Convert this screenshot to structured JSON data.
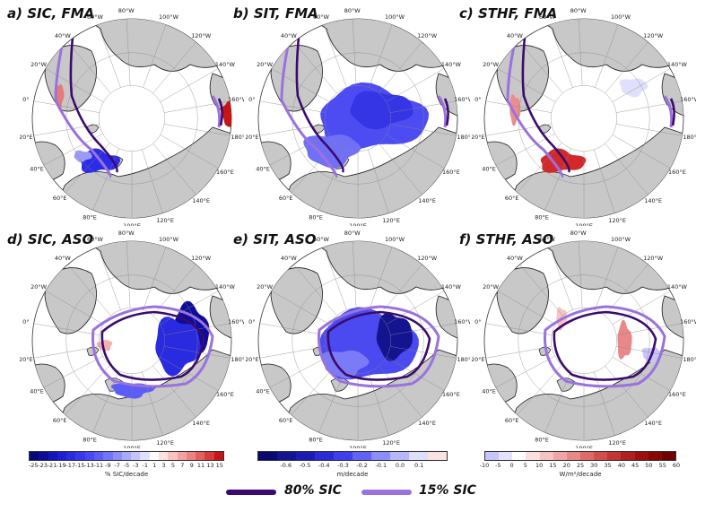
{
  "panels": [
    {
      "id": "a",
      "title": "a) SIC, FMA"
    },
    {
      "id": "b",
      "title": "b) SIT, FMA"
    },
    {
      "id": "c",
      "title": "c) STHF, FMA"
    },
    {
      "id": "d",
      "title": "d) SIC, ASO"
    },
    {
      "id": "e",
      "title": "e) SIT, ASO"
    },
    {
      "id": "f",
      "title": "f) STHF, ASO"
    }
  ],
  "longitude_labels": [
    "80°W",
    "100°W",
    "120°W",
    "140°W",
    "160°W",
    "180°",
    "160°E",
    "140°E",
    "120°E",
    "100°E",
    "80°E",
    "60°E",
    "40°E",
    "20°E",
    "0°",
    "20°W",
    "40°W",
    "60°W"
  ],
  "colorbars": [
    {
      "id": "sic",
      "unit": "% SIC/decade",
      "ticks": [
        "-25",
        "-23",
        "-21",
        "-19",
        "-17",
        "-15",
        "-13",
        "-11",
        "-9",
        "-7",
        "-5",
        "-3",
        "-1",
        "1",
        "3",
        "5",
        "7",
        "9",
        "11",
        "13",
        "15"
      ],
      "colors": [
        "#08087a",
        "#0d0d9a",
        "#1515b8",
        "#1f1fd0",
        "#2a2ae0",
        "#3737ee",
        "#4848f5",
        "#5c5cf8",
        "#7474fa",
        "#8e8efb",
        "#a9a9fc",
        "#c4c4fd",
        "#e0e0fe",
        "#ffffff",
        "#fde0e0",
        "#f9c2c2",
        "#f3a2a2",
        "#ec8282",
        "#e26060",
        "#d63c3c",
        "#c81414"
      ]
    },
    {
      "id": "sit",
      "unit": "m/decade",
      "ticks": [
        "-0.6",
        "-0.5",
        "-0.4",
        "-0.3",
        "-0.2",
        "-0.1",
        "0.0",
        "0.1"
      ],
      "colors": [
        "#0a0a6e",
        "#141490",
        "#1c1cb4",
        "#2a2ad6",
        "#3f3fee",
        "#6262f6",
        "#8c8cfa",
        "#b6b6fc",
        "#dedefe",
        "#fbe2e2"
      ]
    },
    {
      "id": "sthf",
      "unit": "W/m²/decade",
      "ticks": [
        "-10",
        "-5",
        "0",
        "5",
        "10",
        "15",
        "20",
        "25",
        "30",
        "35",
        "40",
        "45",
        "50",
        "55",
        "60"
      ],
      "colors": [
        "#c6c6f8",
        "#e2e2fc",
        "#ffffff",
        "#fbdede",
        "#f6c3c3",
        "#f0a6a6",
        "#e88888",
        "#de6a6a",
        "#d24e4e",
        "#c43434",
        "#b21f1f",
        "#9e1010",
        "#870707",
        "#6e0202"
      ]
    }
  ],
  "legend": [
    {
      "label": "80% SIC",
      "color": "#3c0a6e"
    },
    {
      "label": "15% SIC",
      "color": "#9a72de"
    }
  ],
  "colors": {
    "land": "#c8c8c8",
    "coast": "#1a1a1a",
    "grid": "#888888",
    "contour_80": "#3c0a6e",
    "contour_15": "#9a72de"
  }
}
